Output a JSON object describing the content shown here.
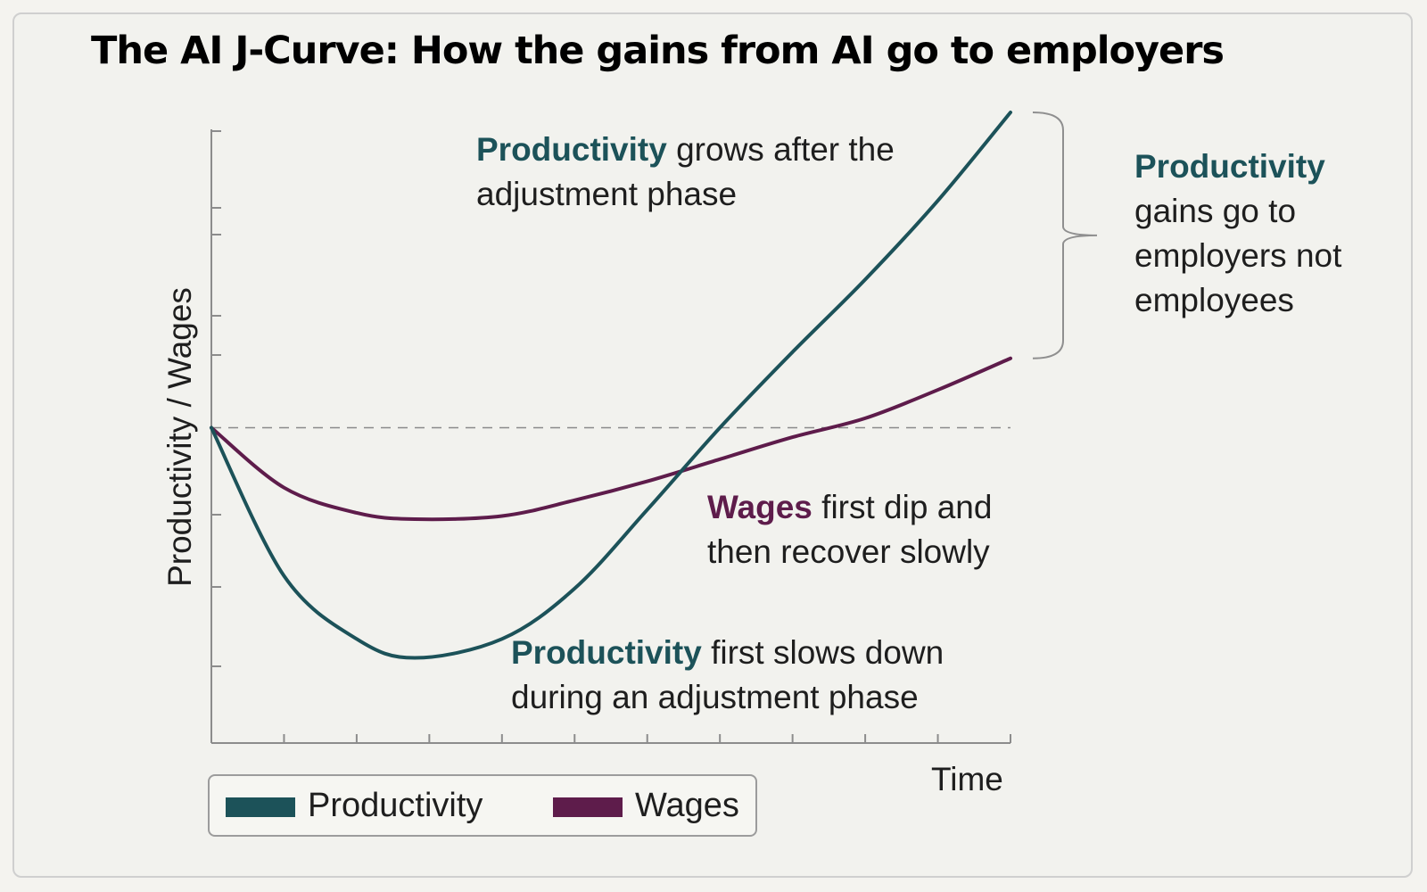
{
  "title": "The AI J-Curve: How the gains from AI go to employers",
  "chart_data": {
    "type": "line",
    "xlabel": "Time",
    "ylabel": "Productivity / Wages",
    "x": [
      0,
      1,
      2,
      2.8,
      4,
      5,
      6,
      7,
      8,
      9,
      10,
      11
    ],
    "xlim": [
      0,
      11
    ],
    "ylim": [
      0,
      100
    ],
    "baseline": 50,
    "series": [
      {
        "name": "Productivity",
        "color": "#1c5259",
        "values": [
          50,
          26.5,
          16.5,
          13.5,
          16.5,
          24.5,
          37,
          50,
          62,
          73.5,
          86,
          100
        ]
      },
      {
        "name": "Wages",
        "color": "#5e1c4b",
        "values": [
          50,
          40.5,
          36.5,
          35.5,
          36,
          38.5,
          41.5,
          45,
          48.5,
          51.5,
          56,
          61
        ]
      }
    ],
    "legend_position": "bottom-left",
    "grid": false
  },
  "annotations": {
    "top_bold": "Productivity",
    "top_rest": "grows after the adjustment phase",
    "wages_bold": "Wages",
    "wages_rest": "first dip and then recover slowly",
    "bottom_bold": "Productivity",
    "bottom_rest": "first slows down during an adjustment phase",
    "side_bold": "Productivity",
    "side_rest": "gains go to employers not employees"
  },
  "legend": {
    "productivity": "Productivity",
    "wages": "Wages"
  }
}
